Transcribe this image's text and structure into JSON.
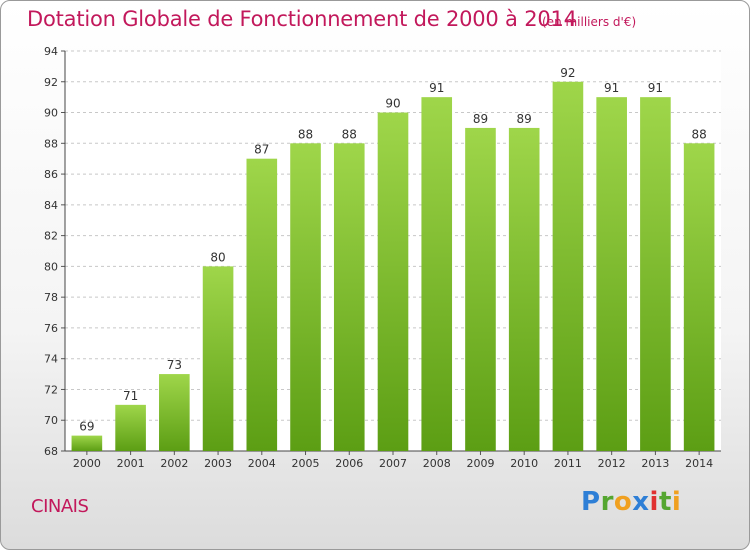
{
  "header": {
    "title": "Dotation Globale de Fonctionnement de 2000 à 2014",
    "unit": "(en milliers d'€)"
  },
  "footer": {
    "place": "CINAIS",
    "logo_letters": [
      "P",
      "r",
      "o",
      "x",
      "i",
      "t",
      "i"
    ]
  },
  "colors": {
    "title": "#c2185b",
    "bar_top": "#9fd64a",
    "bar_bottom": "#5c9e14"
  },
  "chart_data": {
    "type": "bar",
    "title": "Dotation Globale de Fonctionnement de 2000 à 2014",
    "subtitle": "(en milliers d'€)",
    "xlabel": "",
    "ylabel": "",
    "categories": [
      "2000",
      "2001",
      "2002",
      "2003",
      "2004",
      "2005",
      "2006",
      "2007",
      "2008",
      "2009",
      "2010",
      "2011",
      "2012",
      "2013",
      "2014"
    ],
    "values": [
      69,
      71,
      73,
      80,
      87,
      88,
      88,
      90,
      91,
      89,
      89,
      92,
      91,
      91,
      88
    ],
    "ylim": [
      68,
      94
    ],
    "yticks": [
      68,
      70,
      72,
      74,
      76,
      78,
      80,
      82,
      84,
      86,
      88,
      90,
      92,
      94
    ],
    "grid": true,
    "legend": "none"
  }
}
